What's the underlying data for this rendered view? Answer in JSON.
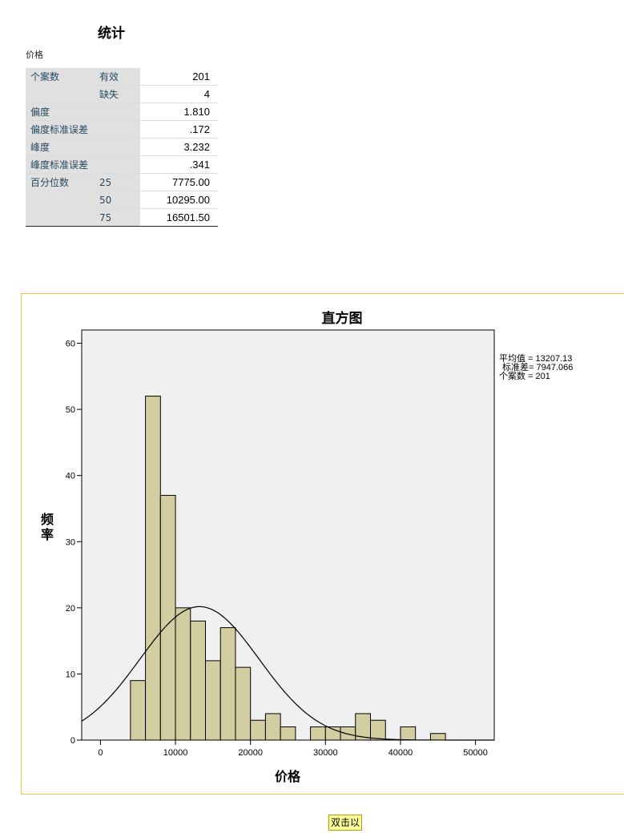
{
  "stats": {
    "title": "统计",
    "variable": "价格",
    "rows": [
      {
        "label": "个案数",
        "sub": "有效",
        "value": "201"
      },
      {
        "label": "",
        "sub": "缺失",
        "value": "4"
      },
      {
        "label": "偏度",
        "sub": "",
        "value": "1.810"
      },
      {
        "label": "偏度标准误差",
        "sub": "",
        "value": ".172"
      },
      {
        "label": "峰度",
        "sub": "",
        "value": "3.232"
      },
      {
        "label": "峰度标准误差",
        "sub": "",
        "value": ".341"
      },
      {
        "label": "百分位数",
        "sub": "25",
        "value": "7775.00"
      },
      {
        "label": "",
        "sub": "50",
        "value": "10295.00"
      },
      {
        "label": "",
        "sub": "75",
        "value": "16501.50"
      }
    ]
  },
  "chart_data": {
    "type": "bar",
    "title": "直方图",
    "xlabel": "价格",
    "ylabel_chars": [
      "频",
      "率"
    ],
    "xlim": [
      -2500,
      52500
    ],
    "ylim": [
      0,
      62
    ],
    "x_ticks": [
      0,
      10000,
      20000,
      30000,
      40000,
      50000
    ],
    "y_ticks": [
      0,
      10,
      20,
      30,
      40,
      50,
      60
    ],
    "bin_width": 2000,
    "bins": [
      {
        "start": 4000,
        "value": 9
      },
      {
        "start": 6000,
        "value": 52
      },
      {
        "start": 8000,
        "value": 37
      },
      {
        "start": 10000,
        "value": 20
      },
      {
        "start": 12000,
        "value": 18
      },
      {
        "start": 14000,
        "value": 12
      },
      {
        "start": 16000,
        "value": 17
      },
      {
        "start": 18000,
        "value": 11
      },
      {
        "start": 20000,
        "value": 3
      },
      {
        "start": 22000,
        "value": 4
      },
      {
        "start": 24000,
        "value": 2
      },
      {
        "start": 28000,
        "value": 2
      },
      {
        "start": 30000,
        "value": 2
      },
      {
        "start": 32000,
        "value": 2
      },
      {
        "start": 34000,
        "value": 4
      },
      {
        "start": 36000,
        "value": 3
      },
      {
        "start": 40000,
        "value": 2
      },
      {
        "start": 44000,
        "value": 1
      }
    ],
    "normal_curve": {
      "mean": 13207.13,
      "sd": 7947.066,
      "n": 201
    },
    "legend": [
      "平均值 = 13207.13",
      "标准差= 7947.066",
      "个案数 = 201"
    ],
    "legend_position": "top-right",
    "bar_color": "#d3cea1",
    "plot_bg": "#f0f0f0",
    "grid": false
  },
  "ui": {
    "double_click_hint": "双击以"
  }
}
